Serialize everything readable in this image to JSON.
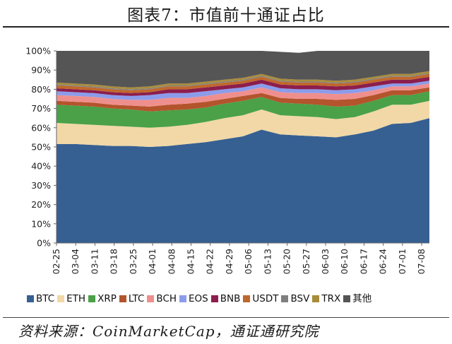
{
  "title": "图表7：市值前十通证占比",
  "source": "资料来源：CoinMarketCap，通证通研究院",
  "chart_data": {
    "type": "area",
    "stacked": true,
    "y_unit": "%",
    "ylim": [
      0,
      100
    ],
    "y_ticks": [
      "0%",
      "10%",
      "20%",
      "30%",
      "40%",
      "50%",
      "60%",
      "70%",
      "80%",
      "90%",
      "100%"
    ],
    "x_tick_labels": [
      "02-25",
      "03-04",
      "03-11",
      "03-18",
      "03-25",
      "04-01",
      "04-08",
      "04-15",
      "04-22",
      "04-29",
      "05-06",
      "05-13",
      "05-20",
      "05-27",
      "06-03",
      "06-10",
      "06-17",
      "06-24",
      "07-01",
      "07-08"
    ],
    "x": [
      "02-25",
      "03-04",
      "03-11",
      "03-18",
      "03-25",
      "04-01",
      "04-08",
      "04-15",
      "04-22",
      "04-29",
      "05-06",
      "05-13",
      "05-20",
      "05-27",
      "06-03",
      "06-10",
      "06-17",
      "06-24",
      "07-01",
      "07-08",
      "07-12"
    ],
    "series": [
      {
        "name": "BTC",
        "color": "#376092",
        "values": [
          51.5,
          51.5,
          51,
          50.5,
          50.5,
          50,
          50.5,
          51.5,
          52.5,
          54,
          55.5,
          59,
          56.5,
          56,
          55.5,
          55,
          56.5,
          58.5,
          62,
          62.5,
          65
        ]
      },
      {
        "name": "ETH",
        "color": "#f1d8a6",
        "values": [
          11,
          10.5,
          10.5,
          10.5,
          10,
          10,
          10,
          10,
          10.5,
          11,
          11,
          10.5,
          10,
          10,
          10,
          9.5,
          9,
          10,
          10,
          9.5,
          9
        ]
      },
      {
        "name": "XRP",
        "color": "#4aa148",
        "values": [
          9.5,
          9.5,
          9.5,
          9,
          9,
          8.5,
          8.5,
          8,
          7.5,
          7.5,
          7.5,
          6.5,
          6.5,
          6.5,
          6.5,
          6.5,
          6,
          5.5,
          5,
          5,
          5
        ]
      },
      {
        "name": "LTC",
        "color": "#b3542c",
        "values": [
          2,
          2,
          2,
          2,
          2,
          2.5,
          3,
          3,
          3,
          2.5,
          2.5,
          2,
          2.5,
          2.5,
          3,
          3.5,
          3.5,
          3,
          2.5,
          2.5,
          2
        ]
      },
      {
        "name": "BCH",
        "color": "#ef8f8d",
        "values": [
          3,
          3,
          3,
          3,
          3,
          3.5,
          3.5,
          3,
          3,
          3,
          2.5,
          3,
          3,
          3,
          3,
          3,
          3,
          2.5,
          2,
          2,
          2
        ]
      },
      {
        "name": "EOS",
        "color": "#8c9ceb",
        "values": [
          2,
          2,
          2,
          2,
          2,
          2.5,
          2.5,
          2.5,
          2.5,
          2,
          2,
          2,
          2,
          2,
          2,
          2,
          2,
          2,
          1.5,
          1.5,
          1.5
        ]
      },
      {
        "name": "BNB",
        "color": "#8c1e4d",
        "values": [
          1.5,
          1.5,
          1.5,
          1.5,
          1.5,
          1.5,
          2,
          2,
          2,
          2,
          2,
          2,
          2,
          2,
          2,
          2,
          2,
          2,
          2,
          2,
          2
        ]
      },
      {
        "name": "USDT",
        "color": "#c0682c",
        "values": [
          1.5,
          1.5,
          1.5,
          1.5,
          1.5,
          1.5,
          1.5,
          1.5,
          1.5,
          1.5,
          1.5,
          1.5,
          1.5,
          1.5,
          1.5,
          1.5,
          1.5,
          1.5,
          1.5,
          1.5,
          1.5
        ]
      },
      {
        "name": "BSV",
        "color": "#7f7f7f",
        "values": [
          0.5,
          0.5,
          0.5,
          0.5,
          0.5,
          0.5,
          0.5,
          0.5,
          0.5,
          0.5,
          0.5,
          0.5,
          0.5,
          0.5,
          0.5,
          0.5,
          0.5,
          0.5,
          0.5,
          0.5,
          0.5
        ]
      },
      {
        "name": "TRX",
        "color": "#a98c3b",
        "values": [
          1,
          1,
          1,
          1,
          1,
          1,
          1,
          1,
          1,
          1,
          1,
          1,
          1,
          1,
          1,
          1,
          1,
          1,
          1,
          1,
          1
        ]
      },
      {
        "name": "其他",
        "color": "#555555",
        "values": [
          16.5,
          17,
          17.5,
          18.5,
          19,
          18.5,
          17,
          17,
          16,
          15,
          14,
          12,
          14,
          14,
          15,
          15.5,
          15,
          13.5,
          12,
          12,
          10.5
        ]
      }
    ],
    "legend_position": "bottom"
  }
}
